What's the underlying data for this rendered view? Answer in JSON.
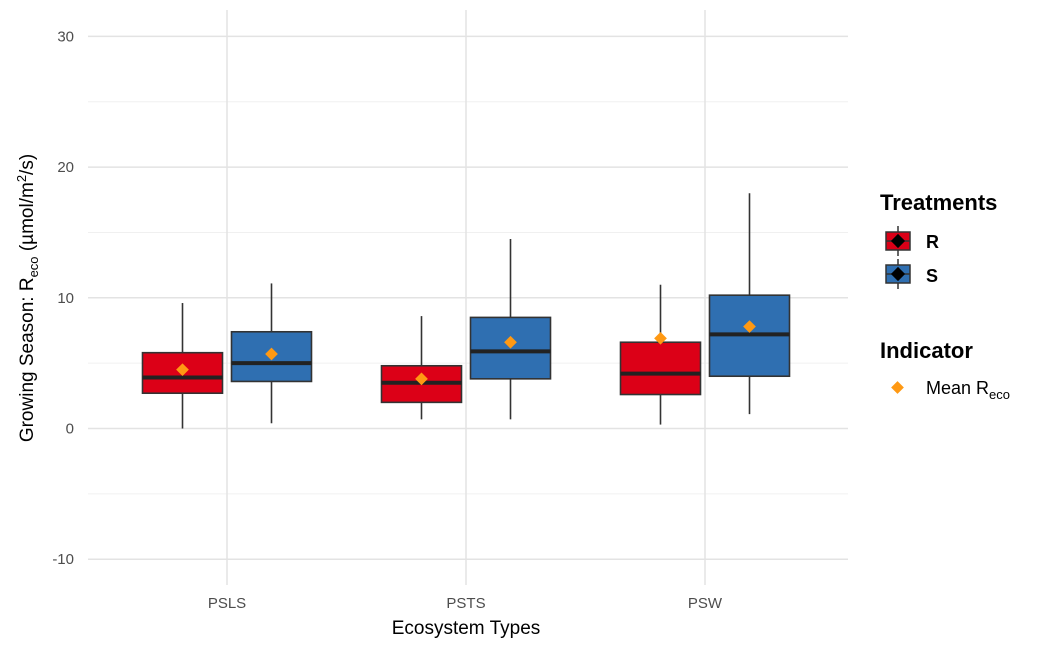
{
  "chart_data": {
    "type": "boxplot",
    "xlabel": "Ecosystem Types",
    "ylabel": {
      "prefix": "Growing Season: R",
      "sub": "eco",
      "mid": " (µmol/m",
      "sup": "2",
      "suffix": "/s)"
    },
    "ylim": [
      -12,
      30
    ],
    "y_ticks": [
      -10,
      0,
      10,
      20,
      30
    ],
    "y_tick_labels": [
      "-10",
      "0",
      "10",
      "20",
      "30"
    ],
    "categories": [
      "PSLS",
      "PSTS",
      "PSW"
    ],
    "series": [
      {
        "name": "R",
        "color": "#dc0017",
        "boxes": [
          {
            "category": "PSLS",
            "whisker_low": 0.0,
            "q1": 2.7,
            "median": 3.9,
            "q3": 5.8,
            "whisker_high": 9.6,
            "mean": 4.5
          },
          {
            "category": "PSTS",
            "whisker_low": 0.7,
            "q1": 2.0,
            "median": 3.5,
            "q3": 4.8,
            "whisker_high": 8.6,
            "mean": 3.8
          },
          {
            "category": "PSW",
            "whisker_low": 0.3,
            "q1": 2.6,
            "median": 4.2,
            "q3": 6.6,
            "whisker_high": 11.0,
            "mean": 6.9
          }
        ]
      },
      {
        "name": "S",
        "color": "#2f6fb1",
        "boxes": [
          {
            "category": "PSLS",
            "whisker_low": 0.4,
            "q1": 3.6,
            "median": 5.0,
            "q3": 7.4,
            "whisker_high": 11.1,
            "mean": 5.7
          },
          {
            "category": "PSTS",
            "whisker_low": 0.7,
            "q1": 3.8,
            "median": 5.9,
            "q3": 8.5,
            "whisker_high": 14.5,
            "mean": 6.6
          },
          {
            "category": "PSW",
            "whisker_low": 1.1,
            "q1": 4.0,
            "median": 7.2,
            "q3": 10.2,
            "whisker_high": 18.0,
            "mean": 7.8
          }
        ]
      }
    ],
    "mean_marker_color": "#ff9913",
    "legend": {
      "treatments_title": "Treatments",
      "treatments": [
        {
          "label": "R",
          "color": "#dc0017"
        },
        {
          "label": "S",
          "color": "#2f6fb1"
        }
      ],
      "indicator_title": "Indicator",
      "indicator_label": {
        "main": "Mean R",
        "sub": "eco"
      }
    }
  }
}
